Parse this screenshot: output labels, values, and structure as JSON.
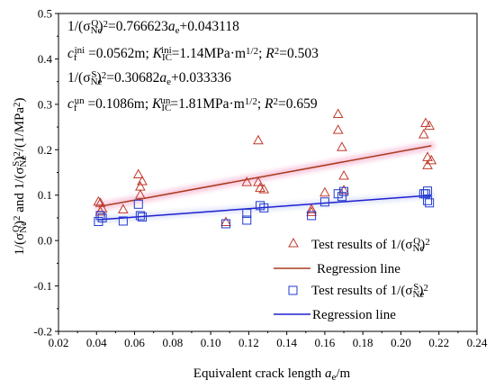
{
  "chart_data": {
    "type": "scatter",
    "title": "",
    "xlabel_main": "Equivalent crack length ",
    "xlabel_var": "a",
    "xlabel_sub": "e",
    "xlabel_unit": "/m",
    "ylabel_text": "1/(σ_Ne^Q)^2 and 1/(σ_Ne^S)^2/(1/MPa^2)",
    "xlim": [
      0.02,
      0.24
    ],
    "ylim": [
      -0.2,
      0.5
    ],
    "xticks": [
      "0.02",
      "0.04",
      "0.06",
      "0.08",
      "0.10",
      "0.12",
      "0.14",
      "0.16",
      "0.18",
      "0.20",
      "0.22",
      "0.24"
    ],
    "yticks": [
      "-0.2",
      "-0.1",
      "0.0",
      "0.1",
      "0.2",
      "0.3",
      "0.4",
      "0.5"
    ],
    "grid": false,
    "legend_position": "lower-right",
    "annotations": {
      "line1": "1/(σ_Ne^Q)^2=0.766623a_e+0.043118",
      "line2": "c_f^ini=0.0562m; K_IC^ini=1.14MPa·m^1/2; R^2=0.503",
      "line3": "1/(σ_Ne^S)^2=0.30682a_e+0.033336",
      "line4": "c_f^un=0.1086m; K_IC^un=1.81MPa·m^1/2; R^2=0.659"
    },
    "series": [
      {
        "name": "Test results of 1/(σ_Ne^Q)^2",
        "marker": "triangle",
        "color": "#c0392b",
        "points": [
          [
            0.041,
            0.085
          ],
          [
            0.042,
            0.082
          ],
          [
            0.043,
            0.07
          ],
          [
            0.042,
            0.063
          ],
          [
            0.054,
            0.068
          ],
          [
            0.062,
            0.145
          ],
          [
            0.063,
            0.118
          ],
          [
            0.064,
            0.13
          ],
          [
            0.063,
            0.1
          ],
          [
            0.108,
            0.04
          ],
          [
            0.119,
            0.128
          ],
          [
            0.125,
            0.22
          ],
          [
            0.125,
            0.128
          ],
          [
            0.126,
            0.115
          ],
          [
            0.128,
            0.112
          ],
          [
            0.153,
            0.068
          ],
          [
            0.153,
            0.062
          ],
          [
            0.16,
            0.105
          ],
          [
            0.167,
            0.278
          ],
          [
            0.167,
            0.243
          ],
          [
            0.169,
            0.205
          ],
          [
            0.17,
            0.11
          ],
          [
            0.17,
            0.142
          ],
          [
            0.212,
            0.233
          ],
          [
            0.213,
            0.258
          ],
          [
            0.214,
            0.183
          ],
          [
            0.214,
            0.165
          ],
          [
            0.215,
            0.252
          ],
          [
            0.216,
            0.176
          ]
        ]
      },
      {
        "name": "Regression line",
        "type": "line",
        "color": "#a83c1e",
        "x": [
          0.041,
          0.216
        ],
        "y": [
          0.0745,
          0.2087
        ]
      },
      {
        "name": "Test results of 1/(σ_Ne^S)^2",
        "marker": "square",
        "color": "#1f3ad0",
        "points": [
          [
            0.041,
            0.042
          ],
          [
            0.042,
            0.055
          ],
          [
            0.043,
            0.05
          ],
          [
            0.054,
            0.043
          ],
          [
            0.062,
            0.08
          ],
          [
            0.063,
            0.055
          ],
          [
            0.064,
            0.052
          ],
          [
            0.108,
            0.037
          ],
          [
            0.119,
            0.06
          ],
          [
            0.119,
            0.045
          ],
          [
            0.126,
            0.077
          ],
          [
            0.128,
            0.072
          ],
          [
            0.153,
            0.055
          ],
          [
            0.16,
            0.085
          ],
          [
            0.167,
            0.103
          ],
          [
            0.169,
            0.097
          ],
          [
            0.17,
            0.108
          ],
          [
            0.212,
            0.103
          ],
          [
            0.213,
            0.103
          ],
          [
            0.214,
            0.109
          ],
          [
            0.214,
            0.088
          ],
          [
            0.215,
            0.083
          ]
        ]
      },
      {
        "name": "Regression line",
        "type": "line",
        "color": "#1f1fd0",
        "x": [
          0.041,
          0.216
        ],
        "y": [
          0.0459,
          0.0996
        ]
      }
    ],
    "legend": [
      {
        "label_pre": "Test results of 1/(σ",
        "label_sub": "Ne",
        "label_sup": "Q",
        "label_post": ")",
        "label_sup2": "2",
        "kind": "triangle"
      },
      {
        "label_pre": "Regression line",
        "kind": "line-red"
      },
      {
        "label_pre": "Test results of 1/(σ",
        "label_sub": "Ne",
        "label_sup": "S",
        "label_post": ")",
        "label_sup2": "2",
        "kind": "square"
      },
      {
        "label_pre": "Regression line",
        "kind": "line-blue"
      }
    ]
  }
}
